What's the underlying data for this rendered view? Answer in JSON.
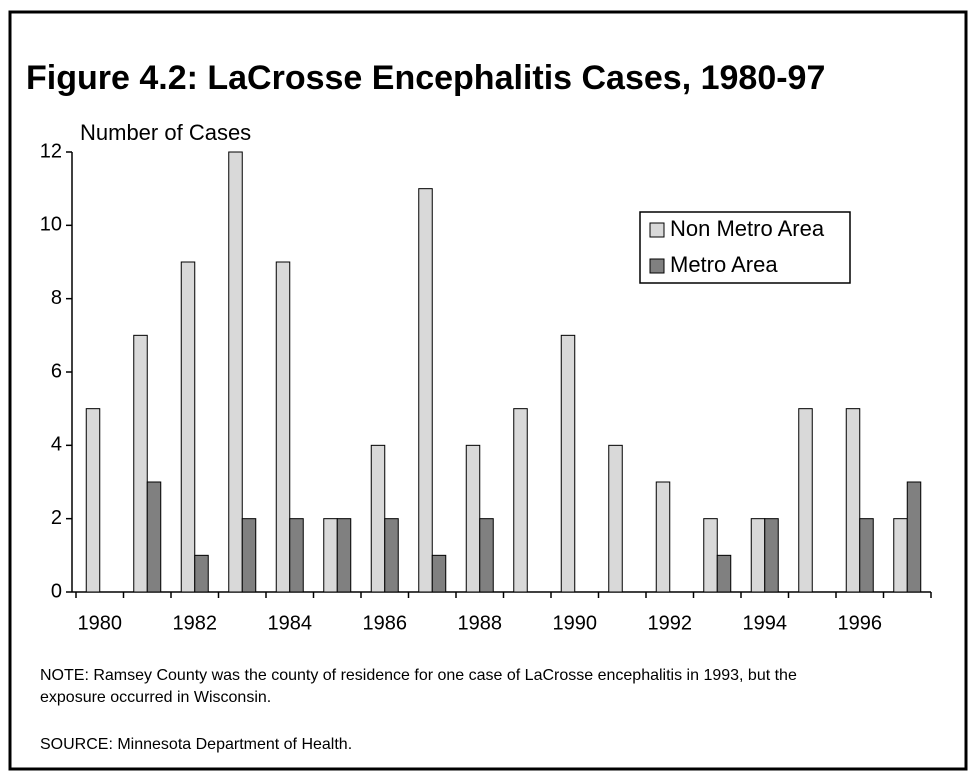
{
  "chart_data": {
    "type": "bar",
    "title": "Figure 4.2:  LaCrosse Encephalitis Cases, 1980-97",
    "y_axis_label": "Number of Cases",
    "categories": [
      "1980",
      null,
      "1982",
      null,
      "1984",
      null,
      "1986",
      null,
      "1988",
      null,
      "1990",
      null,
      "1992",
      null,
      "1994",
      null,
      "1996",
      null
    ],
    "series": [
      {
        "name": "Non Metro Area",
        "color": "#d9d9d9",
        "values": [
          5,
          7,
          9,
          12,
          9,
          2,
          4,
          11,
          4,
          5,
          7,
          4,
          3,
          2,
          2,
          5,
          5,
          2
        ]
      },
      {
        "name": "Metro Area",
        "color": "#808080",
        "values": [
          0,
          3,
          1,
          2,
          2,
          2,
          2,
          1,
          2,
          0,
          0,
          0,
          0,
          1,
          2,
          0,
          2,
          3
        ]
      }
    ],
    "ylim": [
      0,
      12
    ],
    "yticks": [
      0,
      2,
      4,
      6,
      8,
      10,
      12
    ],
    "grid": false,
    "legend": "upper right",
    "note": "NOTE:  Ramsey County was the county of residence for one case of LaCrosse encephalitis in 1993, but the",
    "note_continued": "exposure occurred in Wisconsin.",
    "source": "SOURCE:  Minnesota Department of Health."
  }
}
